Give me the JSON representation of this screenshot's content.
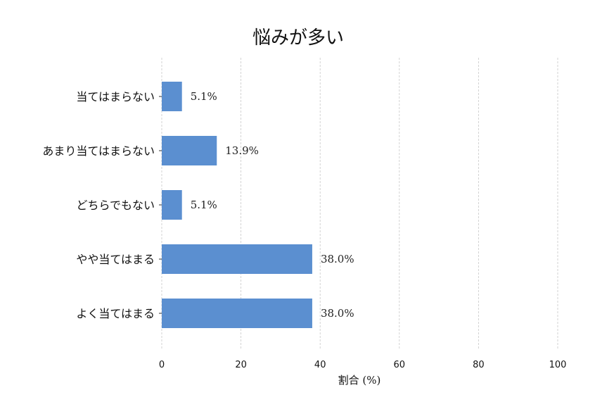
{
  "chart_data": {
    "type": "bar",
    "orientation": "horizontal",
    "title": "悩みが多い",
    "categories": [
      "当てはまらない",
      "あまり当てはまらない",
      "どちらでもない",
      "やや当てはまる",
      "よく当てはまる"
    ],
    "values": [
      5.1,
      13.9,
      5.1,
      38.0,
      38.0
    ],
    "data_labels": [
      "5.1%",
      "13.9%",
      "5.1%",
      "38.0%",
      "38.0%"
    ],
    "xlabel": "割合 (%)",
    "ylabel": "",
    "xlim": [
      0,
      100
    ],
    "xticks": [
      "0",
      "20",
      "40",
      "60",
      "80",
      "100"
    ],
    "grid": "vertical dashed",
    "bar_color": "#5b8fd0"
  }
}
